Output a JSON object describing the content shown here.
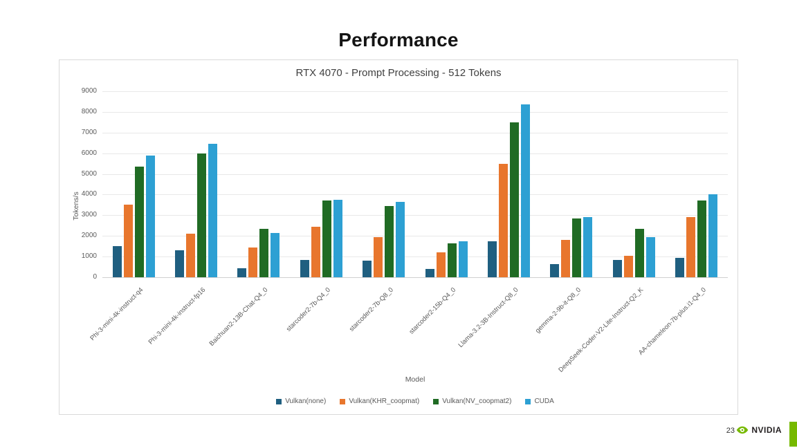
{
  "slide": {
    "title": "Performance"
  },
  "footer": {
    "page_number": "23",
    "brand": "NVIDIA"
  },
  "chart_data": {
    "type": "bar",
    "title": "RTX 4070 - Prompt Processing - 512 Tokens",
    "xlabel": "Model",
    "ylabel": "Tokens/s",
    "ylim": [
      0,
      9000
    ],
    "ytick_step": 1000,
    "grid": true,
    "legend_position": "bottom",
    "categories": [
      "Phi-3-mini-4k-instruct-q4",
      "Phi-3-mini-4k-instruct-fp16",
      "Baichuan2-13B-Chat-Q4_0",
      "starcoder2-7b-Q4_0",
      "starcoder2-7b-Q8_0",
      "starcoder2-15b-Q4_0",
      "Llama-3.2-3B-Instruct-Q8_0",
      "gemma-2-9b-it-Q8_0",
      "DeepSeek-Coder-V2-Lite-Instruct-Q2_K",
      "AA-chameleon-7b-plus.i1-Q4_0"
    ],
    "series": [
      {
        "name": "Vulkan(none)",
        "color": "#1f5f80",
        "values": [
          1500,
          1300,
          450,
          850,
          800,
          400,
          1750,
          650,
          850,
          950
        ]
      },
      {
        "name": "Vulkan(KHR_coopmat)",
        "color": "#e8762d",
        "values": [
          3500,
          2100,
          1450,
          2450,
          1950,
          1200,
          5500,
          1800,
          1050,
          2900
        ]
      },
      {
        "name": "Vulkan(NV_coopmat2)",
        "color": "#206b24",
        "values": [
          5350,
          6000,
          2350,
          3700,
          3450,
          1650,
          7500,
          2850,
          2350,
          3700
        ]
      },
      {
        "name": "CUDA",
        "color": "#2da0d3",
        "values": [
          5900,
          6450,
          2150,
          3750,
          3650,
          1750,
          8350,
          2900,
          1950,
          4000
        ]
      }
    ],
    "brand_colors": {
      "nvidia_green": "#76b900"
    }
  }
}
